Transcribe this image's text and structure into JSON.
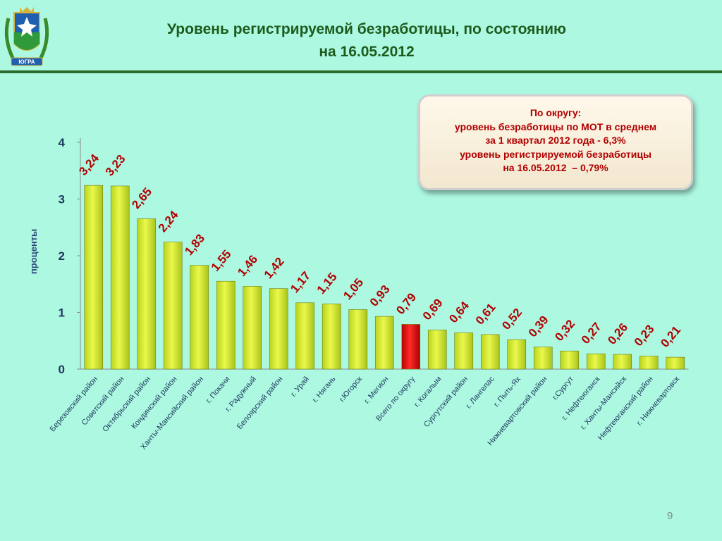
{
  "slide": {
    "title_line1": "Уровень регистрируемой безработицы, по состоянию",
    "title_line2": "на 16.05.2012",
    "page_number": "9",
    "emblem_text": "ЮГРА"
  },
  "callout": {
    "lines": [
      "По округу:",
      "уровень безработицы по МОТ в среднем",
      "за 1 квартал 2012 года - 6,3%",
      "уровень регистрируемой безработицы",
      "на 16.05.2012  – 0,79%"
    ]
  },
  "colors": {
    "background": "#ADF8E1",
    "bar": "#DDF231",
    "bar_highlight": "#E00000",
    "data_label": "#B00000",
    "axis_text": "#1E3A5F",
    "title": "#1D5B1D"
  },
  "chart_data": {
    "type": "bar",
    "ylabel": "проценты",
    "ylim": [
      0,
      4
    ],
    "yticks": [
      "0",
      "1",
      "2",
      "3",
      "4"
    ],
    "grid": false,
    "legend": "none",
    "categories": [
      "Березовский район",
      "Советский район",
      "Октябрьский район",
      "Кондинский район",
      "Ханты-Мансийский район",
      "г. Покачи",
      "г. Радужный",
      "Белоярский район",
      "г. Урай",
      "г. Нягань",
      "г.Югорск",
      "г. Мегион",
      "Всего по округу",
      "г. Когалым",
      "Сургутский район",
      "г. Лангепас",
      "г. Пыть-Ях",
      "Нижневартовский район",
      "г.Сургут",
      "г. Нефтеюганск",
      "г. Ханты-Мансийск",
      "Нефтеюганский район",
      "г. Нижневартовск"
    ],
    "values": [
      3.24,
      3.23,
      2.65,
      2.24,
      1.83,
      1.55,
      1.46,
      1.42,
      1.17,
      1.15,
      1.05,
      0.93,
      0.79,
      0.69,
      0.64,
      0.61,
      0.52,
      0.39,
      0.32,
      0.27,
      0.26,
      0.23,
      0.21
    ],
    "value_labels": [
      "3,24",
      "3,23",
      "2,65",
      "2,24",
      "1,83",
      "1,55",
      "1,46",
      "1,42",
      "1,17",
      "1,15",
      "1,05",
      "0,93",
      "0,79",
      "0,69",
      "0,64",
      "0,61",
      "0,52",
      "0,39",
      "0,32",
      "0,27",
      "0,26",
      "0,23",
      "0,21"
    ],
    "highlight_category": "Всего по округу"
  }
}
